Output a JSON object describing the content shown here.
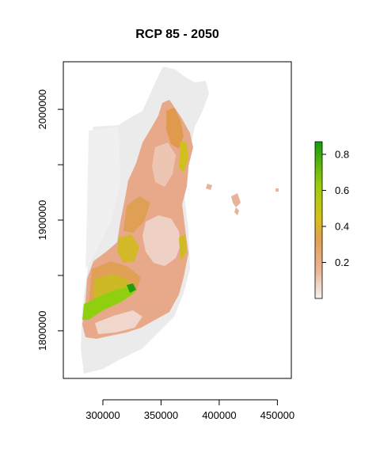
{
  "title": "RCP 85 - 2050",
  "x_axis": {
    "ticks": [
      {
        "value": 300000,
        "label": "300000"
      },
      {
        "value": 350000,
        "label": "350000"
      },
      {
        "value": 400000,
        "label": "400000"
      },
      {
        "value": 450000,
        "label": "450000"
      }
    ],
    "range": [
      266000,
      462000
    ]
  },
  "y_axis": {
    "ticks": [
      {
        "value": 1800000,
        "label": "1800000"
      },
      {
        "value": 1850000,
        "label": ""
      },
      {
        "value": 1900000,
        "label": "1900000"
      },
      {
        "value": 1950000,
        "label": ""
      },
      {
        "value": 2000000,
        "label": "2000000"
      }
    ],
    "range": [
      1757000,
      2043000
    ]
  },
  "legend": {
    "range": [
      0.0,
      0.87
    ],
    "ticks": [
      {
        "value": 0.2,
        "label": "0.2"
      },
      {
        "value": 0.4,
        "label": "0.4"
      },
      {
        "value": 0.6,
        "label": "0.6"
      },
      {
        "value": 0.8,
        "label": "0.8"
      }
    ],
    "colors": [
      "#f2f2f2",
      "#ecb596",
      "#e2a050",
      "#d4c216",
      "#9ccc0a",
      "#139c0a"
    ]
  }
}
